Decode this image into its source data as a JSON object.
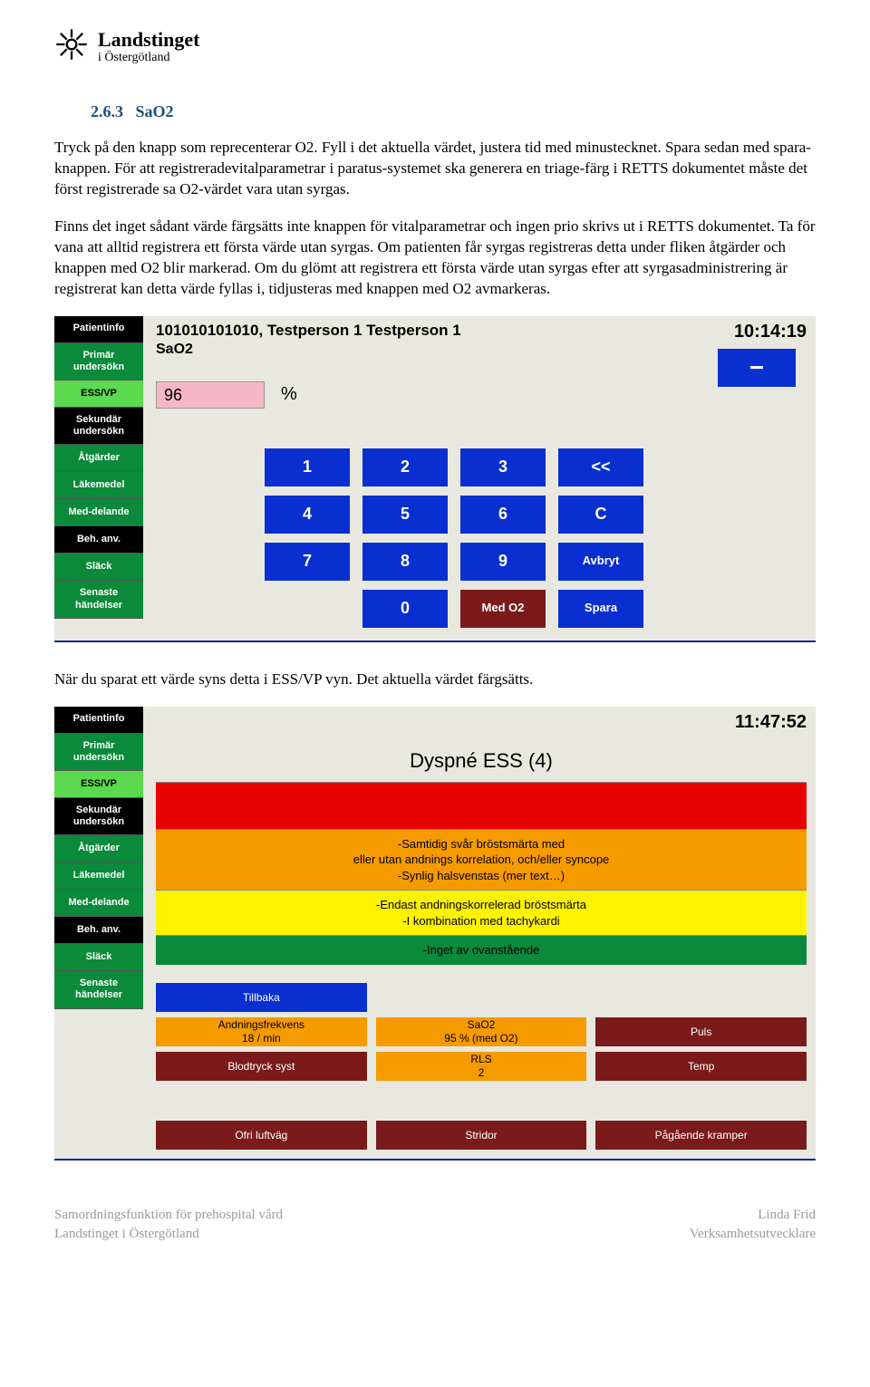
{
  "header": {
    "org_line1": "Landstinget",
    "org_line2": "i Östergötland"
  },
  "section": {
    "number": "2.6.3",
    "title": "SaO2"
  },
  "paragraphs": {
    "p1": "Tryck på den knapp som reprecenterar O2. Fyll i det aktuella värdet, justera tid med minustecknet. Spara sedan med spara-knappen. För att registreradevitalparametrar i paratus-systemet ska generera en triage-färg i RETTS dokumentet måste det först registrerade sa O2-värdet vara utan syrgas.",
    "p2": "Finns det inget sådant värde färgsätts inte knappen för vitalparametrar och ingen prio skrivs ut i RETTS dokumentet. Ta för vana att alltid registrera ett första värde utan syrgas. Om patienten får syrgas registreras detta under fliken åtgärder och knappen med O2 blir markerad. Om du glömt att registrera ett första värde utan syrgas efter att syrgasadministrering är registrerat kan detta värde fyllas i, tidjusteras med knappen med O2 avmarkeras.",
    "p3": "När du sparat ett värde syns detta i ESS/VP vyn. Det aktuella värdet färgsätts."
  },
  "screenshot1": {
    "time": "10:14:19",
    "patient": "101010101010, Testperson 1 Testperson 1",
    "title": "SaO2",
    "value": "96",
    "unit": "%",
    "minus": "−",
    "sidebar": [
      {
        "label": "Patientinfo",
        "cls": "side-black"
      },
      {
        "label": "Primär undersökn",
        "cls": "side-green"
      },
      {
        "label": "ESS/VP",
        "cls": "side-lime"
      },
      {
        "label": "Sekundär undersökn",
        "cls": "side-black"
      },
      {
        "label": "Åtgärder",
        "cls": "side-green"
      },
      {
        "label": "Läkemedel",
        "cls": "side-green"
      },
      {
        "label": "Med-delande",
        "cls": "side-green"
      },
      {
        "label": "Beh. anv.",
        "cls": "side-black"
      },
      {
        "label": "Släck",
        "cls": "side-green"
      },
      {
        "label": "Senaste händelser",
        "cls": "side-green"
      }
    ],
    "keypad": [
      {
        "label": "1"
      },
      {
        "label": "2"
      },
      {
        "label": "3"
      },
      {
        "label": "<<"
      },
      {
        "label": "4"
      },
      {
        "label": "5"
      },
      {
        "label": "6"
      },
      {
        "label": "C"
      },
      {
        "label": "7"
      },
      {
        "label": "8"
      },
      {
        "label": "9"
      },
      {
        "label": "Avbryt",
        "small": true
      },
      {
        "label": "",
        "hidden": true
      },
      {
        "label": "0"
      },
      {
        "label": "Med O2",
        "cls": "kbtn-maroon",
        "small": true
      },
      {
        "label": "Spara",
        "small": true
      }
    ]
  },
  "screenshot2": {
    "time": "11:47:52",
    "title": "Dyspné ESS (4)",
    "sidebar": [
      {
        "label": "Patientinfo",
        "cls": "side-black"
      },
      {
        "label": "Primär undersökn",
        "cls": "side-green"
      },
      {
        "label": "ESS/VP",
        "cls": "side-lime"
      },
      {
        "label": "Sekundär undersökn",
        "cls": "side-black"
      },
      {
        "label": "Åtgärder",
        "cls": "side-green"
      },
      {
        "label": "Läkemedel",
        "cls": "side-green"
      },
      {
        "label": "Med-delande",
        "cls": "side-green"
      },
      {
        "label": "Beh. anv.",
        "cls": "side-black"
      },
      {
        "label": "Släck",
        "cls": "side-green"
      },
      {
        "label": "Senaste händelser",
        "cls": "side-green"
      }
    ],
    "bands": [
      {
        "cls": "tb-red",
        "text": ""
      },
      {
        "cls": "tb-orange",
        "text": "-Samtidig svår bröstsmärta med\neller utan andnings korrelation, och/eller syncope\n-Synlig halsvenstas (mer text…)"
      },
      {
        "cls": "tb-yellow",
        "text": "-Endast andningskorrelerad bröstsmärta\n-I kombination med tachykardi"
      },
      {
        "cls": "tb-green",
        "text": "-Inget av ovanstående"
      }
    ],
    "vitals": [
      {
        "label": "Tillbaka",
        "cls": "v-blue"
      },
      {
        "label": "",
        "cls": "v-hidden"
      },
      {
        "label": "",
        "cls": "v-hidden"
      },
      {
        "label": "Andningsfrekvens\n18 / min",
        "cls": "v-orange"
      },
      {
        "label": "SaO2\n95 % (med O2)",
        "cls": "v-orange"
      },
      {
        "label": "Puls",
        "cls": "v-maroon"
      },
      {
        "label": "Blodtryck syst",
        "cls": "v-maroon"
      },
      {
        "label": "RLS\n2",
        "cls": "v-orange"
      },
      {
        "label": "Temp",
        "cls": "v-maroon"
      },
      {
        "label": "",
        "cls": "v-hidden"
      },
      {
        "label": "",
        "cls": "v-hidden"
      },
      {
        "label": "",
        "cls": "v-hidden"
      },
      {
        "label": "Ofri luftväg",
        "cls": "v-maroon"
      },
      {
        "label": "Stridor",
        "cls": "v-maroon"
      },
      {
        "label": "Pågående kramper",
        "cls": "v-maroon"
      }
    ]
  },
  "footer": {
    "left1": "Samordningsfunktion för prehospital vård",
    "left2": "Landstinget i Östergötland",
    "right1": "Linda Frid",
    "right2": "Verksamhetsutvecklare"
  },
  "colors": {
    "accent_blue": "#0a2fd1",
    "sidebar_green": "#0a8a3a",
    "sidebar_lime": "#5bd94f",
    "maroon": "#7a1a1a",
    "value_pink": "#f5b7c8",
    "triage_red": "#e60000",
    "triage_orange": "#f59b00",
    "triage_yellow": "#fff200",
    "triage_green": "#0a8a3a",
    "section_heading": "#1f4e79"
  }
}
